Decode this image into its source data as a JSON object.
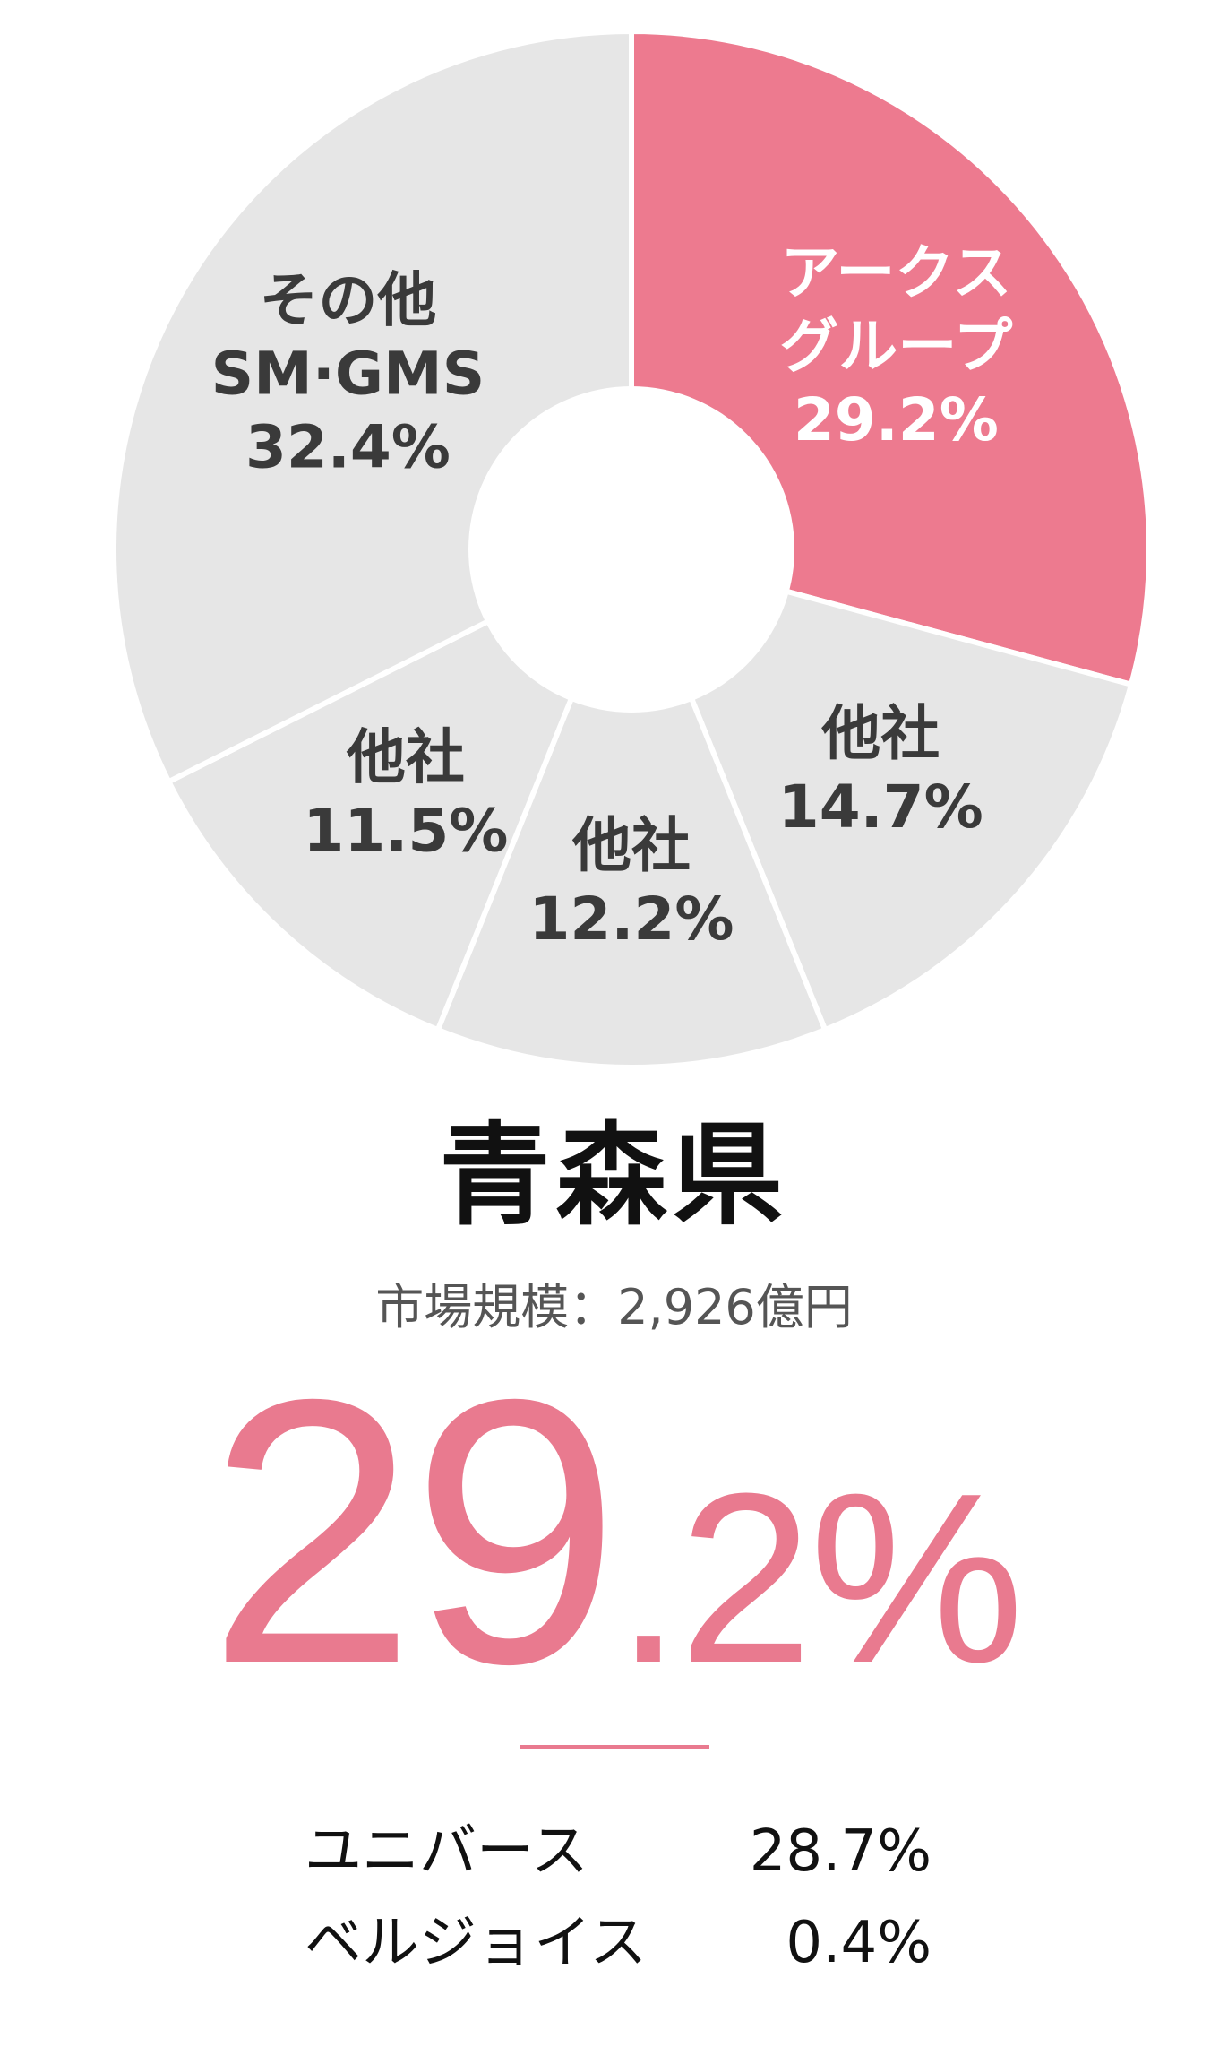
{
  "chart_data": {
    "type": "pie",
    "slices": [
      {
        "label_lines": [
          "アークス",
          "グループ",
          "29.2%"
        ],
        "value": 29.2,
        "color": "#ed7a8f",
        "text_color": "#ffffff"
      },
      {
        "label_lines": [
          "他社",
          "14.7%"
        ],
        "value": 14.7,
        "color": "#e6e6e6",
        "text_color": "#3a3a3a"
      },
      {
        "label_lines": [
          "他社",
          "12.2%"
        ],
        "value": 12.2,
        "color": "#e6e6e6",
        "text_color": "#3a3a3a"
      },
      {
        "label_lines": [
          "他社",
          "11.5%"
        ],
        "value": 11.5,
        "color": "#e6e6e6",
        "text_color": "#3a3a3a"
      },
      {
        "label_lines": [
          "その他",
          "SM·GMS",
          "32.4%"
        ],
        "value": 32.4,
        "color": "#e6e6e6",
        "text_color": "#3a3a3a"
      }
    ]
  },
  "region": {
    "title": "青森県",
    "market_size": "市場規模：2,926億円"
  },
  "share": {
    "int_part": "29",
    "dec_part": ".2%",
    "accent_color": "#e97a8f"
  },
  "breakdown": [
    {
      "name": "ユニバース",
      "value": "28.7%"
    },
    {
      "name": "ベルジョイス",
      "value": "0.4%"
    }
  ]
}
